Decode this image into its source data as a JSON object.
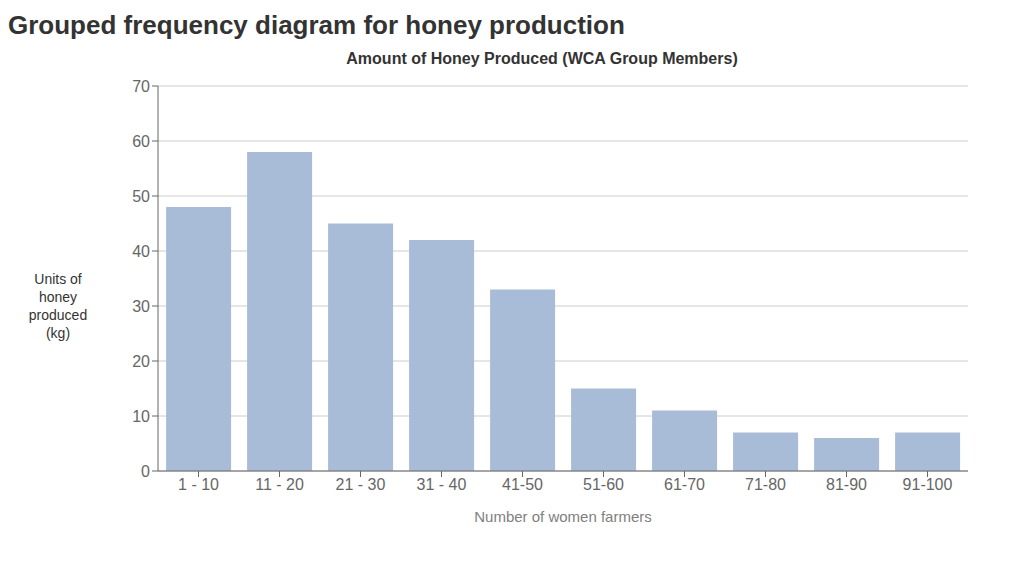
{
  "chart_data": {
    "type": "bar",
    "title": "Amount of Honey Produced (WCA Group Members)",
    "subtitle": "Grouped frequency diagram for honey production",
    "xlabel": "Number of women farmers",
    "ylabel": "Units of\nhoney\nproduced\n(kg)",
    "categories": [
      "1 - 10",
      "11 - 20",
      "21 - 30",
      "31 - 40",
      "41-50",
      "51-60",
      "61-70",
      "71-80",
      "81-90",
      "91-100"
    ],
    "values": [
      48,
      58,
      45,
      42,
      33,
      15,
      11,
      7,
      6,
      7
    ],
    "color": "#a8bcd8",
    "ylim": [
      0,
      70
    ],
    "yticks": [
      0,
      10,
      20,
      30,
      40,
      50,
      60,
      70
    ],
    "grid": true
  }
}
